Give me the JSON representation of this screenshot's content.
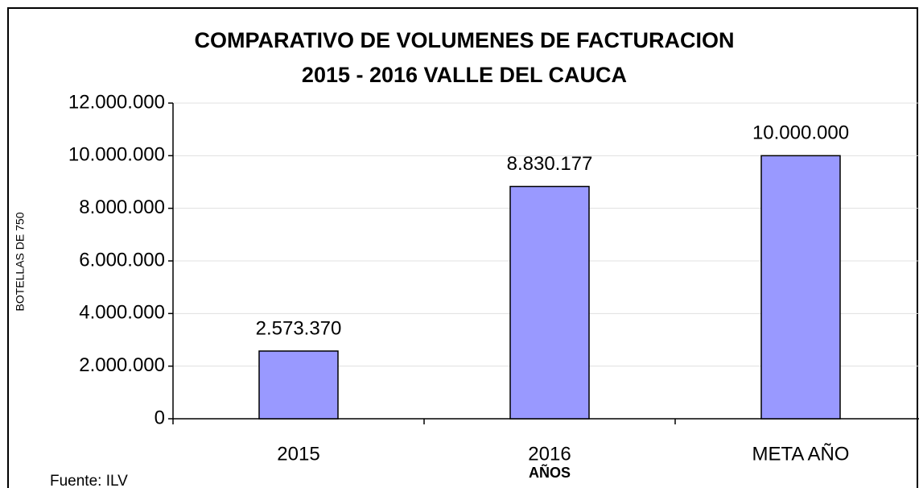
{
  "chart_data": {
    "type": "bar",
    "title": [
      "COMPARATIVO DE VOLUMENES DE FACTURACION",
      "2015 -  2016 VALLE DEL CAUCA"
    ],
    "y_label": "BOTELLAS DE 750",
    "x_label": "AÑOS",
    "source": "Fuente: ILV",
    "categories": [
      "2015",
      "2016",
      "META AÑO"
    ],
    "values": [
      2573370,
      8830177,
      10000000
    ],
    "value_labels": [
      "2.573.370",
      "8.830.177",
      "10.000.000"
    ],
    "color": "#9999ff",
    "ylim": [
      0,
      12000000
    ],
    "yticks": [
      0,
      {
        "value": 2000000,
        "label": "2.000.000"
      },
      {
        "value": 4000000,
        "label": "4.000.000"
      },
      {
        "value": 6000000,
        "label": "6.000.000"
      },
      {
        "value": 8000000,
        "label": "8.000.000"
      },
      {
        "value": 10000000,
        "label": "10.000.000"
      },
      {
        "value": 12000000,
        "label": "12.000.000"
      }
    ],
    "grid": true
  }
}
